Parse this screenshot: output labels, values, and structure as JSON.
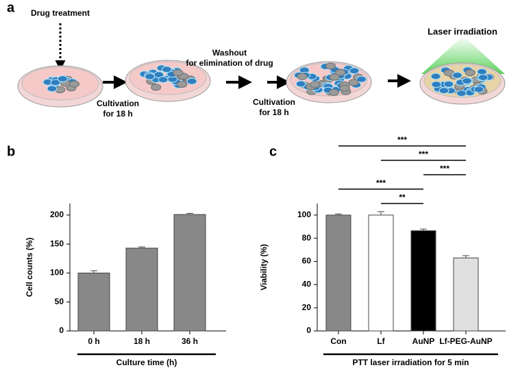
{
  "diagram": {
    "panel_label": "a",
    "steps": {
      "drug": "Drug treatment",
      "cultivation_1": [
        "Cultivation",
        "for 18 h"
      ],
      "washout": [
        "Washout",
        "for elimination of drug"
      ],
      "cultivation_2": [
        "Cultivation",
        "for 18 h"
      ],
      "laser": "Laser irradiation"
    }
  },
  "chart_data": [
    {
      "type": "bar",
      "panel_label": "b",
      "x_label": "Culture time (h)",
      "y_label": "Cell counts (%)",
      "categories": [
        "0 h",
        "18 h",
        "36 h"
      ],
      "values": [
        100,
        143,
        201
      ],
      "errors": [
        4,
        2,
        2
      ],
      "color": "#888888",
      "ylim": [
        0,
        220
      ],
      "yticks": [
        0,
        50,
        100,
        150,
        200
      ]
    },
    {
      "type": "bar",
      "panel_label": "c",
      "x_label": "PTT laser irradiation for 5 min",
      "y_label": "Viability (%)",
      "categories": [
        "Con",
        "Lf",
        "AuNP",
        "Lf-PEG-AuNP"
      ],
      "values": [
        100,
        100,
        86.5,
        63
      ],
      "errors": [
        1,
        3,
        1.5,
        2
      ],
      "colors": [
        "#888888",
        "#ffffff",
        "#000000",
        "#e0e0e0"
      ],
      "ylim": [
        0,
        110
      ],
      "yticks": [
        0,
        20,
        40,
        60,
        80,
        100
      ],
      "comparisons": [
        {
          "label": "***",
          "groups": [
            "Con",
            "Lf-PEG-AuNP"
          ]
        },
        {
          "label": "***",
          "groups": [
            "Lf",
            "Lf-PEG-AuNP"
          ]
        },
        {
          "label": "***",
          "groups": [
            "AuNP",
            "Lf-PEG-AuNP"
          ]
        },
        {
          "label": "***",
          "groups": [
            "Con",
            "AuNP"
          ]
        },
        {
          "label": "**",
          "groups": [
            "Lf",
            "AuNP"
          ]
        }
      ]
    }
  ]
}
